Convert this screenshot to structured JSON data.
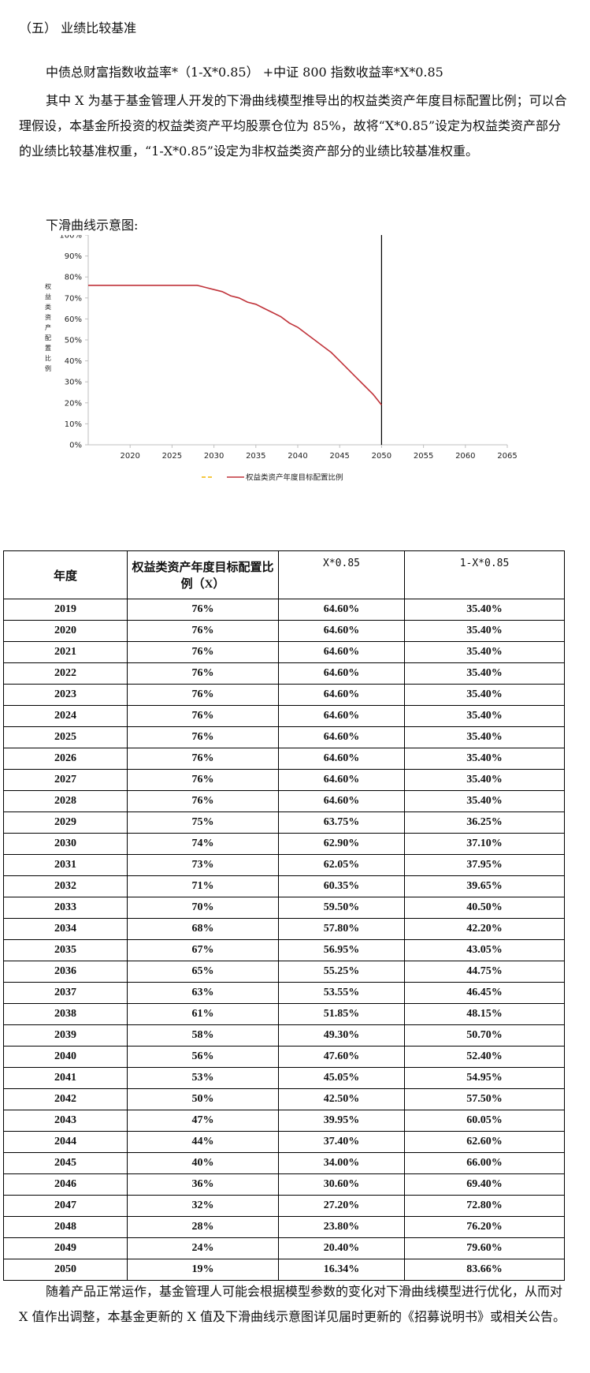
{
  "heading": "（五） 业绩比较基准",
  "formula": "中债总财富指数收益率*（1-X*0.85） +中证 800 指数收益率*X*0.85",
  "paragraph1": "其中 X 为基于基金管理人开发的下滑曲线模型推导出的权益类资产年度目标配置比例；可以合理假设，本基金所投资的权益类资产平均股票仓位为 85%，故将“X*0.85”设定为权益类资产部分的业绩比较基准权重，“1-X*0.85”设定为非权益类资产部分的业绩比较基准权重。",
  "chart_caption": "下滑曲线示意图:",
  "chart_data": {
    "type": "line",
    "ylabel": "权益类资产配置比例",
    "xlabel": "",
    "xlim": [
      2015,
      2065
    ],
    "ylim": [
      0,
      100
    ],
    "x_ticks": [
      2020,
      2025,
      2030,
      2035,
      2040,
      2045,
      2050,
      2055,
      2060,
      2065
    ],
    "y_ticks": [
      "0%",
      "10%",
      "20%",
      "30%",
      "40%",
      "50%",
      "60%",
      "70%",
      "80%",
      "90%",
      "100%"
    ],
    "grid": false,
    "legend_position": "bottom",
    "legend": [
      "权益类资产年度目标配置比例"
    ],
    "series": [
      {
        "name": "权益类资产年度目标配置比例",
        "color": "#c0333a",
        "x": [
          2015,
          2027,
          2028,
          2029,
          2030,
          2031,
          2032,
          2033,
          2034,
          2035,
          2036,
          2037,
          2038,
          2039,
          2040,
          2041,
          2042,
          2043,
          2044,
          2045,
          2046,
          2047,
          2048,
          2049,
          2050
        ],
        "y": [
          76,
          76,
          76,
          75,
          74,
          73,
          71,
          70,
          68,
          67,
          65,
          63,
          61,
          58,
          56,
          53,
          50,
          47,
          44,
          40,
          36,
          32,
          28,
          24,
          19
        ]
      }
    ],
    "marker_line": {
      "x": 2050,
      "y_range": [
        0,
        100
      ],
      "color": "#000000"
    },
    "legend_swatch_color": "#f2b600"
  },
  "table": {
    "headers": [
      "年度",
      "权益类资产年度目标配置比例（X）",
      "X*0.85",
      "1-X*0.85"
    ],
    "rows": [
      [
        "2019",
        "76%",
        "64.60%",
        "35.40%"
      ],
      [
        "2020",
        "76%",
        "64.60%",
        "35.40%"
      ],
      [
        "2021",
        "76%",
        "64.60%",
        "35.40%"
      ],
      [
        "2022",
        "76%",
        "64.60%",
        "35.40%"
      ],
      [
        "2023",
        "76%",
        "64.60%",
        "35.40%"
      ],
      [
        "2024",
        "76%",
        "64.60%",
        "35.40%"
      ],
      [
        "2025",
        "76%",
        "64.60%",
        "35.40%"
      ],
      [
        "2026",
        "76%",
        "64.60%",
        "35.40%"
      ],
      [
        "2027",
        "76%",
        "64.60%",
        "35.40%"
      ],
      [
        "2028",
        "76%",
        "64.60%",
        "35.40%"
      ],
      [
        "2029",
        "75%",
        "63.75%",
        "36.25%"
      ],
      [
        "2030",
        "74%",
        "62.90%",
        "37.10%"
      ],
      [
        "2031",
        "73%",
        "62.05%",
        "37.95%"
      ],
      [
        "2032",
        "71%",
        "60.35%",
        "39.65%"
      ],
      [
        "2033",
        "70%",
        "59.50%",
        "40.50%"
      ],
      [
        "2034",
        "68%",
        "57.80%",
        "42.20%"
      ],
      [
        "2035",
        "67%",
        "56.95%",
        "43.05%"
      ],
      [
        "2036",
        "65%",
        "55.25%",
        "44.75%"
      ],
      [
        "2037",
        "63%",
        "53.55%",
        "46.45%"
      ],
      [
        "2038",
        "61%",
        "51.85%",
        "48.15%"
      ],
      [
        "2039",
        "58%",
        "49.30%",
        "50.70%"
      ],
      [
        "2040",
        "56%",
        "47.60%",
        "52.40%"
      ],
      [
        "2041",
        "53%",
        "45.05%",
        "54.95%"
      ],
      [
        "2042",
        "50%",
        "42.50%",
        "57.50%"
      ],
      [
        "2043",
        "47%",
        "39.95%",
        "60.05%"
      ],
      [
        "2044",
        "44%",
        "37.40%",
        "62.60%"
      ],
      [
        "2045",
        "40%",
        "34.00%",
        "66.00%"
      ],
      [
        "2046",
        "36%",
        "30.60%",
        "69.40%"
      ],
      [
        "2047",
        "32%",
        "27.20%",
        "72.80%"
      ],
      [
        "2048",
        "28%",
        "23.80%",
        "76.20%"
      ],
      [
        "2049",
        "24%",
        "20.40%",
        "79.60%"
      ],
      [
        "2050",
        "19%",
        "16.34%",
        "83.66%"
      ]
    ]
  },
  "paragraph2": "随着产品正常运作，基金管理人可能会根据模型参数的变化对下滑曲线模型进行优化，从而对 X 值作出调整，本基金更新的 X 值及下滑曲线示意图详见届时更新的《招募说明书》或相关公告。"
}
